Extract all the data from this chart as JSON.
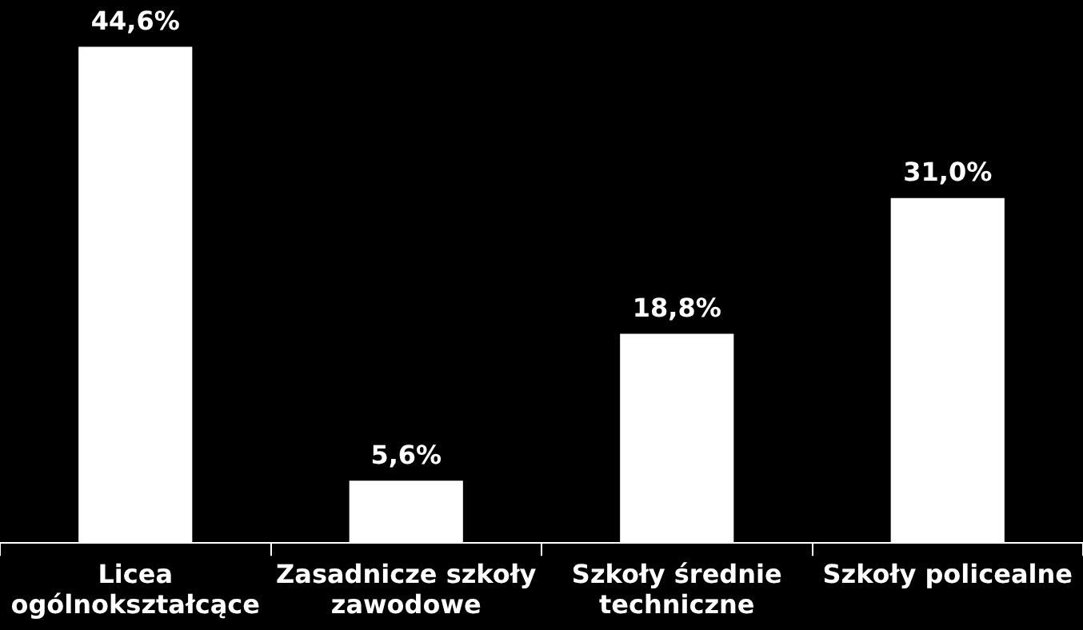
{
  "chart_data": {
    "type": "bar",
    "categories": [
      "Licea ogólnokształcące",
      "Zasadnicze szkoły zawodowe",
      "Szkoły średnie techniczne",
      "Szkoły policealne"
    ],
    "values": [
      44.6,
      5.6,
      18.8,
      31.0
    ],
    "value_labels": [
      "44,6%",
      "5,6%",
      "18,8%",
      "31,0%"
    ],
    "color": "#ffffff",
    "ylim": [
      0,
      48.8
    ],
    "legend": false
  }
}
